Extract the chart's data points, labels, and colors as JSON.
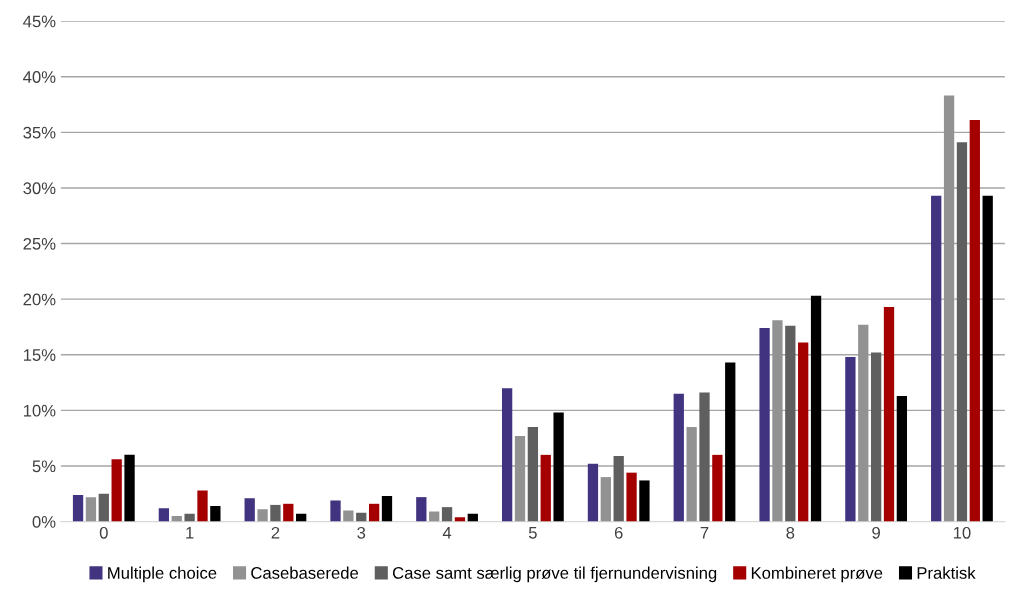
{
  "chart_data": {
    "type": "bar",
    "categories": [
      "0",
      "1",
      "2",
      "3",
      "4",
      "5",
      "6",
      "7",
      "8",
      "9",
      "10"
    ],
    "series": [
      {
        "name": "Multiple choice",
        "color": "#41337f",
        "values": [
          2.4,
          1.2,
          2.1,
          1.9,
          2.2,
          12.0,
          5.2,
          11.5,
          17.4,
          14.8,
          29.3
        ]
      },
      {
        "name": "Casebaserede",
        "color": "#929292",
        "values": [
          2.2,
          0.5,
          1.1,
          1.0,
          0.9,
          7.7,
          4.0,
          8.5,
          18.1,
          17.7,
          38.3
        ]
      },
      {
        "name": "Case samt særlig prøve til fjernundervisning",
        "color": "#5f5f5f",
        "values": [
          2.5,
          0.7,
          1.5,
          0.8,
          1.3,
          8.5,
          5.9,
          11.6,
          17.6,
          15.2,
          34.1
        ]
      },
      {
        "name": "Kombineret prøve",
        "color": "#a50000",
        "values": [
          5.6,
          2.8,
          1.6,
          1.6,
          0.4,
          6.0,
          4.4,
          6.0,
          16.1,
          19.3,
          36.1
        ]
      },
      {
        "name": "Praktisk",
        "color": "#000000",
        "values": [
          6.0,
          1.4,
          0.7,
          2.3,
          0.7,
          9.8,
          3.7,
          14.3,
          20.3,
          11.3,
          29.3
        ]
      }
    ],
    "ylim": [
      0,
      45
    ],
    "yticks": [
      {
        "value": 0,
        "label": "0%"
      },
      {
        "value": 5,
        "label": "5%"
      },
      {
        "value": 10,
        "label": "10%"
      },
      {
        "value": 15,
        "label": "15%"
      },
      {
        "value": 20,
        "label": "20%"
      },
      {
        "value": 25,
        "label": "25%"
      },
      {
        "value": 30,
        "label": "30%"
      },
      {
        "value": 35,
        "label": "35%"
      },
      {
        "value": 40,
        "label": "40%"
      },
      {
        "value": 45,
        "label": "45%"
      }
    ],
    "grid": "y",
    "legend": "bottom"
  }
}
